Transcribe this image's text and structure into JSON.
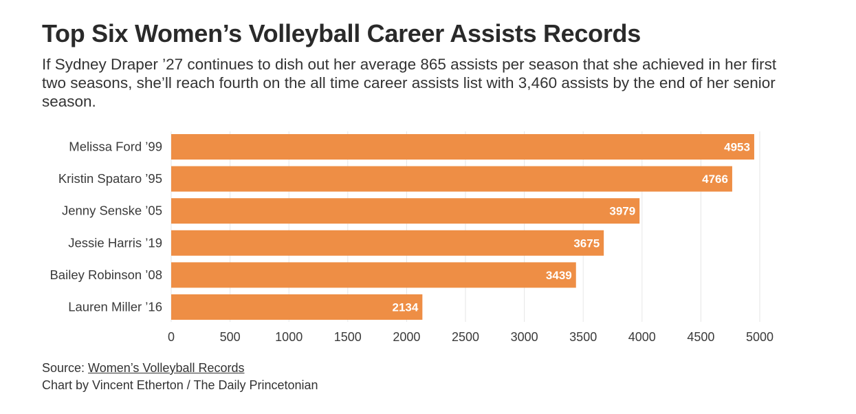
{
  "header": {
    "title": "Top Six Women’s Volleyball Career Assists Records",
    "subtitle": "If Sydney Draper ’27 continues to dish out her average 865 assists per season that she achieved in her first two seasons, she’ll reach fourth on the all time career assists list with 3,460 assists by the end of her senior season."
  },
  "footer": {
    "source_prefix": "Source: ",
    "source_link": "Women’s Volleyball Records",
    "credit": "Chart by Vincent Etherton / The Daily Princetonian"
  },
  "colors": {
    "bar": "#ee8e45",
    "grid": "#e6e6e6",
    "label": "#ffffff"
  },
  "chart_data": {
    "type": "bar",
    "orientation": "horizontal",
    "categories": [
      "Melissa Ford ’99",
      "Kristin Spataro ’95",
      "Jenny Senske ’05",
      "Jessie Harris ’19",
      "Bailey Robinson ’08",
      "Lauren Miller ’16"
    ],
    "values": [
      4953,
      4766,
      3979,
      3675,
      3439,
      2134
    ],
    "xlim": [
      0,
      5000
    ],
    "xticks": [
      0,
      500,
      1000,
      1500,
      2000,
      2500,
      3000,
      3500,
      4000,
      4500,
      5000
    ],
    "grid": true,
    "xlabel": "",
    "ylabel": ""
  }
}
